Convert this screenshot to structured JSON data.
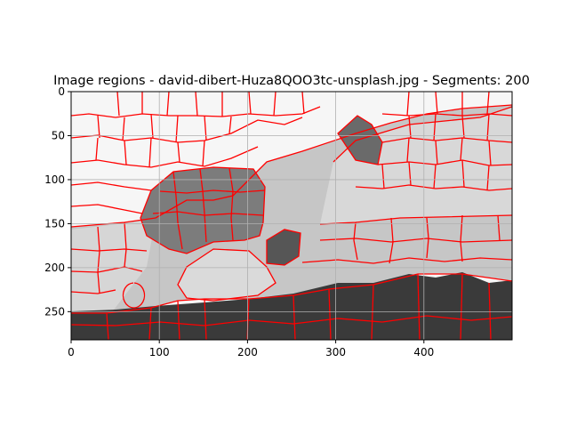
{
  "chart_data": {
    "type": "heatmap",
    "title": "Image regions - david-dibert-Huza8QOO3tc-unsplash.jpg - Segments: 200",
    "xlabel": "",
    "ylabel": "",
    "xlim": [
      0,
      500
    ],
    "ylim": [
      282,
      0
    ],
    "x_ticks": [
      0,
      100,
      200,
      300,
      400
    ],
    "y_ticks": [
      0,
      50,
      100,
      150,
      200,
      250
    ],
    "grid": true,
    "segment_count": 200,
    "boundary_color": "#ff0000",
    "colors": {
      "white_region": "#f6f6f6",
      "light_gray_region": "#d6d6d6",
      "mid_gray_region": "#c3c3c3",
      "dark_gray_region": "#7c7c7c",
      "darkest_region": "#3a3a3a",
      "grid": "#b0b0b0"
    }
  }
}
